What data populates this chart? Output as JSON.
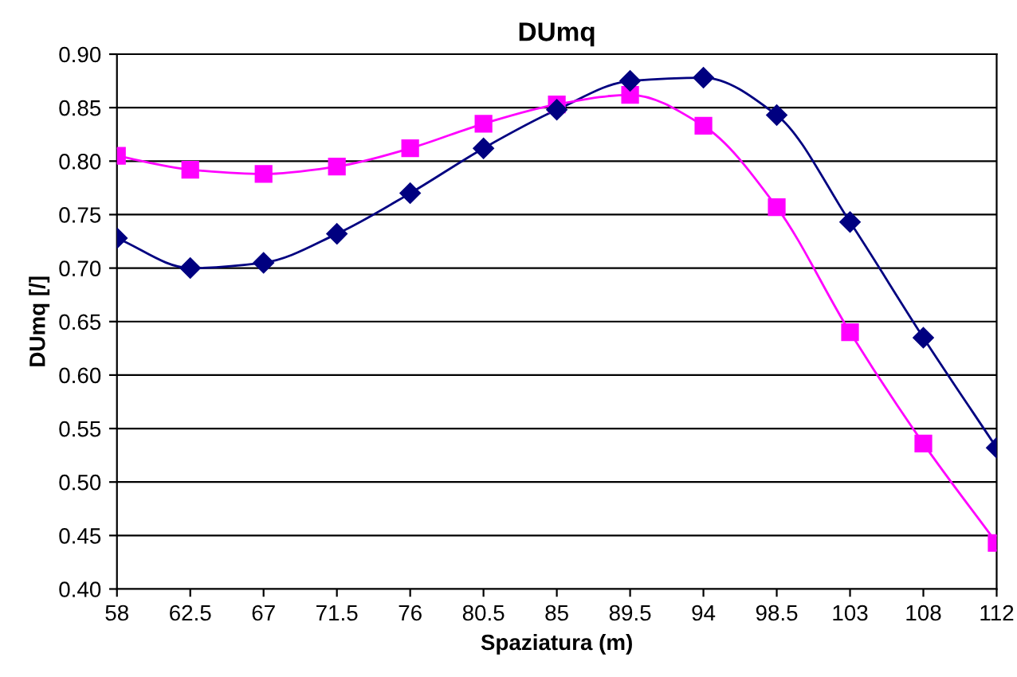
{
  "chart_data": {
    "type": "line",
    "title": "DUmq",
    "xlabel": "Spaziatura (m)",
    "ylabel": "DUmq [/]",
    "categories": [
      "58",
      "62.5",
      "67",
      "71.5",
      "76",
      "80.5",
      "85",
      "89.5",
      "94",
      "98.5",
      "103",
      "108",
      "112"
    ],
    "series": [
      {
        "color": "#000080",
        "marker": "diamond",
        "values": [
          0.728,
          0.7,
          0.705,
          0.732,
          0.77,
          0.812,
          0.848,
          0.875,
          0.878,
          0.843,
          0.743,
          0.635,
          0.532
        ]
      },
      {
        "color": "#ff00ff",
        "marker": "square",
        "values": [
          0.805,
          0.792,
          0.788,
          0.795,
          0.812,
          0.835,
          0.853,
          0.862,
          0.833,
          0.757,
          0.64,
          0.536,
          0.443
        ]
      }
    ],
    "ylim": [
      0.4,
      0.9
    ],
    "yticks": [
      {
        "value": 0.4,
        "label": "0.40"
      },
      {
        "value": 0.45,
        "label": "0.45"
      },
      {
        "value": 0.5,
        "label": "0.50"
      },
      {
        "value": 0.55,
        "label": "0.55"
      },
      {
        "value": 0.6,
        "label": "0.60"
      },
      {
        "value": 0.65,
        "label": "0.65"
      },
      {
        "value": 0.7,
        "label": "0.70"
      },
      {
        "value": 0.75,
        "label": "0.75"
      },
      {
        "value": 0.8,
        "label": "0.80"
      },
      {
        "value": 0.85,
        "label": "0.85"
      },
      {
        "value": 0.9,
        "label": "0.90"
      }
    ],
    "grid": "y",
    "line_style": "solid"
  }
}
